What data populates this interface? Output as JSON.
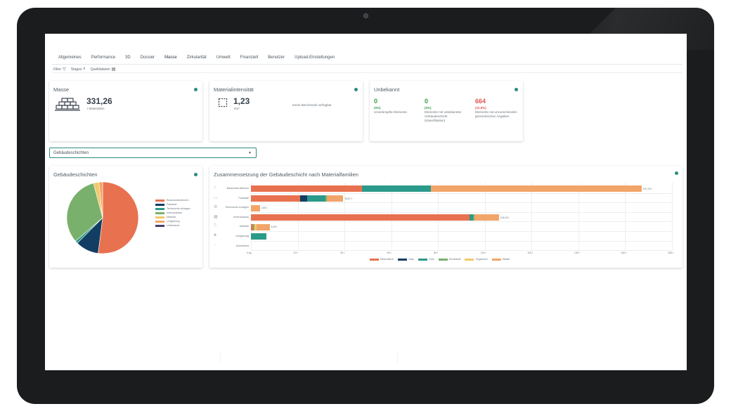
{
  "tabs": [
    "Allgemeines",
    "Performance",
    "3D",
    "Dossier",
    "Masse",
    "Zirkularität",
    "Umwelt",
    "Finanziell",
    "Benutzer",
    "Upload-Einstellungen"
  ],
  "active_tab": "Masse",
  "filters": {
    "filter_label": "Filter",
    "stages_label": "Stages",
    "sources_label": "Quelldateien"
  },
  "masse": {
    "title": "Masse",
    "value": "331,26",
    "unit": "t Materialien"
  },
  "intensity": {
    "title": "Materialintensität",
    "value": "1,23",
    "unit": "t/m²",
    "note": "Keine Benchmark verfügbar"
  },
  "unknown": {
    "title": "Unbekannt",
    "items": [
      {
        "value": "0",
        "pct": "(0%)",
        "desc": "Unverknüpfte Elemente",
        "color": "#3a9d4a"
      },
      {
        "value": "0",
        "pct": "(0%)",
        "desc": "Elemente mit unbekannter Gebäudeschicht (Klassifikation)",
        "color": "#3a9d4a"
      },
      {
        "value": "664",
        "pct": "(22,9%)",
        "desc": "Elemente mit unzureichenden geometrischen Angaben",
        "color": "#e0564a"
      }
    ]
  },
  "dropdown": {
    "selected": "Gebäudeschichten"
  },
  "layers_card": {
    "title": "Gebäudeschichten",
    "legend": [
      {
        "name": "Baukonstruktionen",
        "color": "#e8714f"
      },
      {
        "name": "Fassade",
        "color": "#123e63"
      },
      {
        "name": "Technische Anlagen",
        "color": "#2a9a8a"
      },
      {
        "name": "Innenausbau",
        "color": "#79b06b"
      },
      {
        "name": "Mobiliar",
        "color": "#f1c96a"
      },
      {
        "name": "Umgebung",
        "color": "#f2a56a"
      },
      {
        "name": "Unbekannt",
        "color": "#4b3b74"
      }
    ]
  },
  "chart_data": {
    "type": "bar",
    "title": "Zusammensetzung der Gebäudeschicht nach Materialfamilien",
    "orientation": "horizontal-stacked",
    "categories": [
      "Baukonstruktionen",
      "Fassade",
      "Technische Anlagen",
      "Innenausbau",
      "Mobiliar",
      "Umgebung",
      "Unbekannt"
    ],
    "value_labels": [
      "167,23 t",
      "39,87 t",
      "3,83 t",
      "106,33 t",
      "8,25 t",
      "",
      ""
    ],
    "series": [
      {
        "name": "Mineralisch",
        "color": "#e8714f",
        "values": [
          47.5,
          21.0,
          0,
          93.5,
          1.0,
          0,
          0
        ]
      },
      {
        "name": "Glas",
        "color": "#123e63",
        "values": [
          0,
          3.0,
          0,
          0,
          0,
          0,
          0
        ]
      },
      {
        "name": "Holz",
        "color": "#2a9a8a",
        "values": [
          29.5,
          8.0,
          0,
          1.5,
          0,
          6.5,
          0
        ]
      },
      {
        "name": "Kunststoff",
        "color": "#79b06b",
        "values": [
          0,
          0.5,
          0,
          0.5,
          0.5,
          0,
          0
        ]
      },
      {
        "name": "Organisch",
        "color": "#f1c96a",
        "values": [
          0,
          0,
          0,
          0,
          1.0,
          0,
          0
        ]
      },
      {
        "name": "Metall",
        "color": "#f2a56a",
        "values": [
          90.0,
          7.0,
          3.8,
          10.5,
          5.5,
          0,
          0
        ]
      }
    ],
    "ticks": [
      "0 kg",
      "20 t",
      "40 t",
      "60 t",
      "80 t",
      "100 t",
      "120 t",
      "140 t",
      "160 t",
      "180 t"
    ],
    "xlim": [
      0,
      180
    ]
  },
  "pie_data": {
    "type": "pie",
    "values": [
      52.0,
      10.5,
      1.2,
      32.2,
      2.4,
      1.7,
      0.0
    ],
    "colors": [
      "#e8714f",
      "#123e63",
      "#2a9a8a",
      "#79b06b",
      "#f1c96a",
      "#f2a56a",
      "#4b3b74"
    ]
  }
}
